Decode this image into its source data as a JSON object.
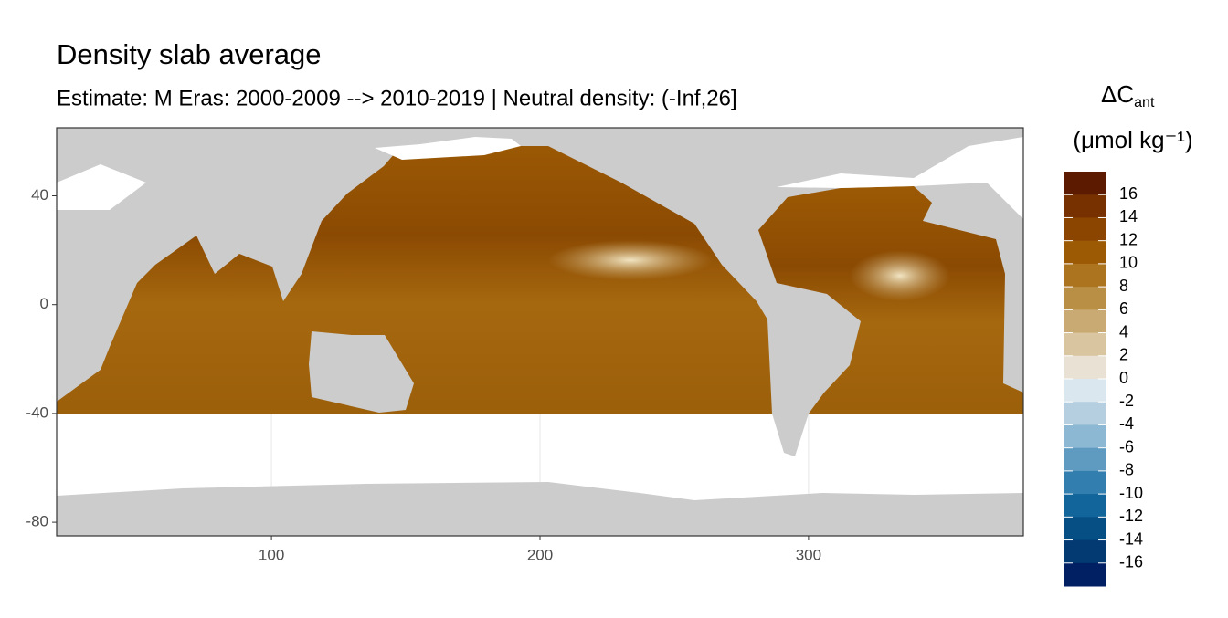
{
  "chart_data": {
    "type": "map",
    "title": "Density slab average",
    "subtitle": "Estimate: M Eras: 2000-2009 --> 2010-2019 | Neutral density: (-Inf,26]",
    "xlim": [
      20,
      380
    ],
    "ylim": [
      -85,
      65
    ],
    "xticks": [
      100,
      200,
      300
    ],
    "yticks": [
      -80,
      -40,
      0,
      40
    ],
    "grid": true,
    "legend": {
      "title": "ΔC",
      "title_subscript": "ant",
      "unit": "(μmol kg⁻¹)",
      "limits": [
        -18,
        18
      ],
      "breaks": [
        16,
        14,
        12,
        10,
        8,
        6,
        4,
        2,
        0,
        -2,
        -4,
        -6,
        -8,
        -10,
        -12,
        -14,
        -16
      ],
      "colors": [
        "#5c1a00",
        "#773100",
        "#8b4500",
        "#9c5a05",
        "#ad7420",
        "#b98e45",
        "#c8aa72",
        "#d9c6a1",
        "#e9e2d4",
        "#dbe7ee",
        "#b5cfe0",
        "#8db8d3",
        "#5f9bc1",
        "#327eae",
        "#12659a",
        "#064f85",
        "#033a72",
        "#011f63"
      ]
    }
  }
}
